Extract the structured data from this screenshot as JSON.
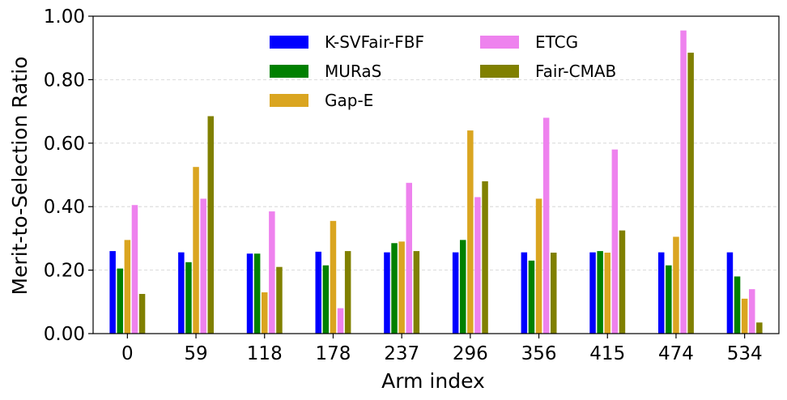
{
  "chart_data": {
    "type": "bar",
    "title": "",
    "xlabel": "Arm index",
    "ylabel": "Merit-to-Selection Ratio",
    "categories": [
      "0",
      "59",
      "118",
      "178",
      "237",
      "296",
      "356",
      "415",
      "474",
      "534"
    ],
    "ylim": [
      0,
      1.0
    ],
    "yticks": [
      "0.00",
      "0.20",
      "0.40",
      "0.60",
      "0.80",
      "1.00"
    ],
    "grid": "horizontal dashed",
    "legend_position": "top-center",
    "series": [
      {
        "name": "K-SVFair-FBF",
        "color": "#0000ff",
        "values": [
          0.26,
          0.256,
          0.252,
          0.258,
          0.256,
          0.256,
          0.256,
          0.256,
          0.256,
          0.256
        ]
      },
      {
        "name": "MURaS",
        "color": "#008000",
        "values": [
          0.205,
          0.225,
          0.252,
          0.215,
          0.285,
          0.295,
          0.23,
          0.26,
          0.215,
          0.18
        ]
      },
      {
        "name": "Gap-E",
        "color": "#daa520",
        "values": [
          0.295,
          0.525,
          0.13,
          0.355,
          0.29,
          0.64,
          0.425,
          0.255,
          0.305,
          0.11
        ]
      },
      {
        "name": "ETCG",
        "color": "#ee82ee",
        "values": [
          0.405,
          0.425,
          0.385,
          0.08,
          0.475,
          0.43,
          0.68,
          0.58,
          0.955,
          0.14
        ]
      },
      {
        "name": "Fair-CMAB",
        "color": "#808000",
        "values": [
          0.125,
          0.685,
          0.21,
          0.26,
          0.26,
          0.48,
          0.255,
          0.325,
          0.885,
          0.035
        ]
      }
    ]
  }
}
